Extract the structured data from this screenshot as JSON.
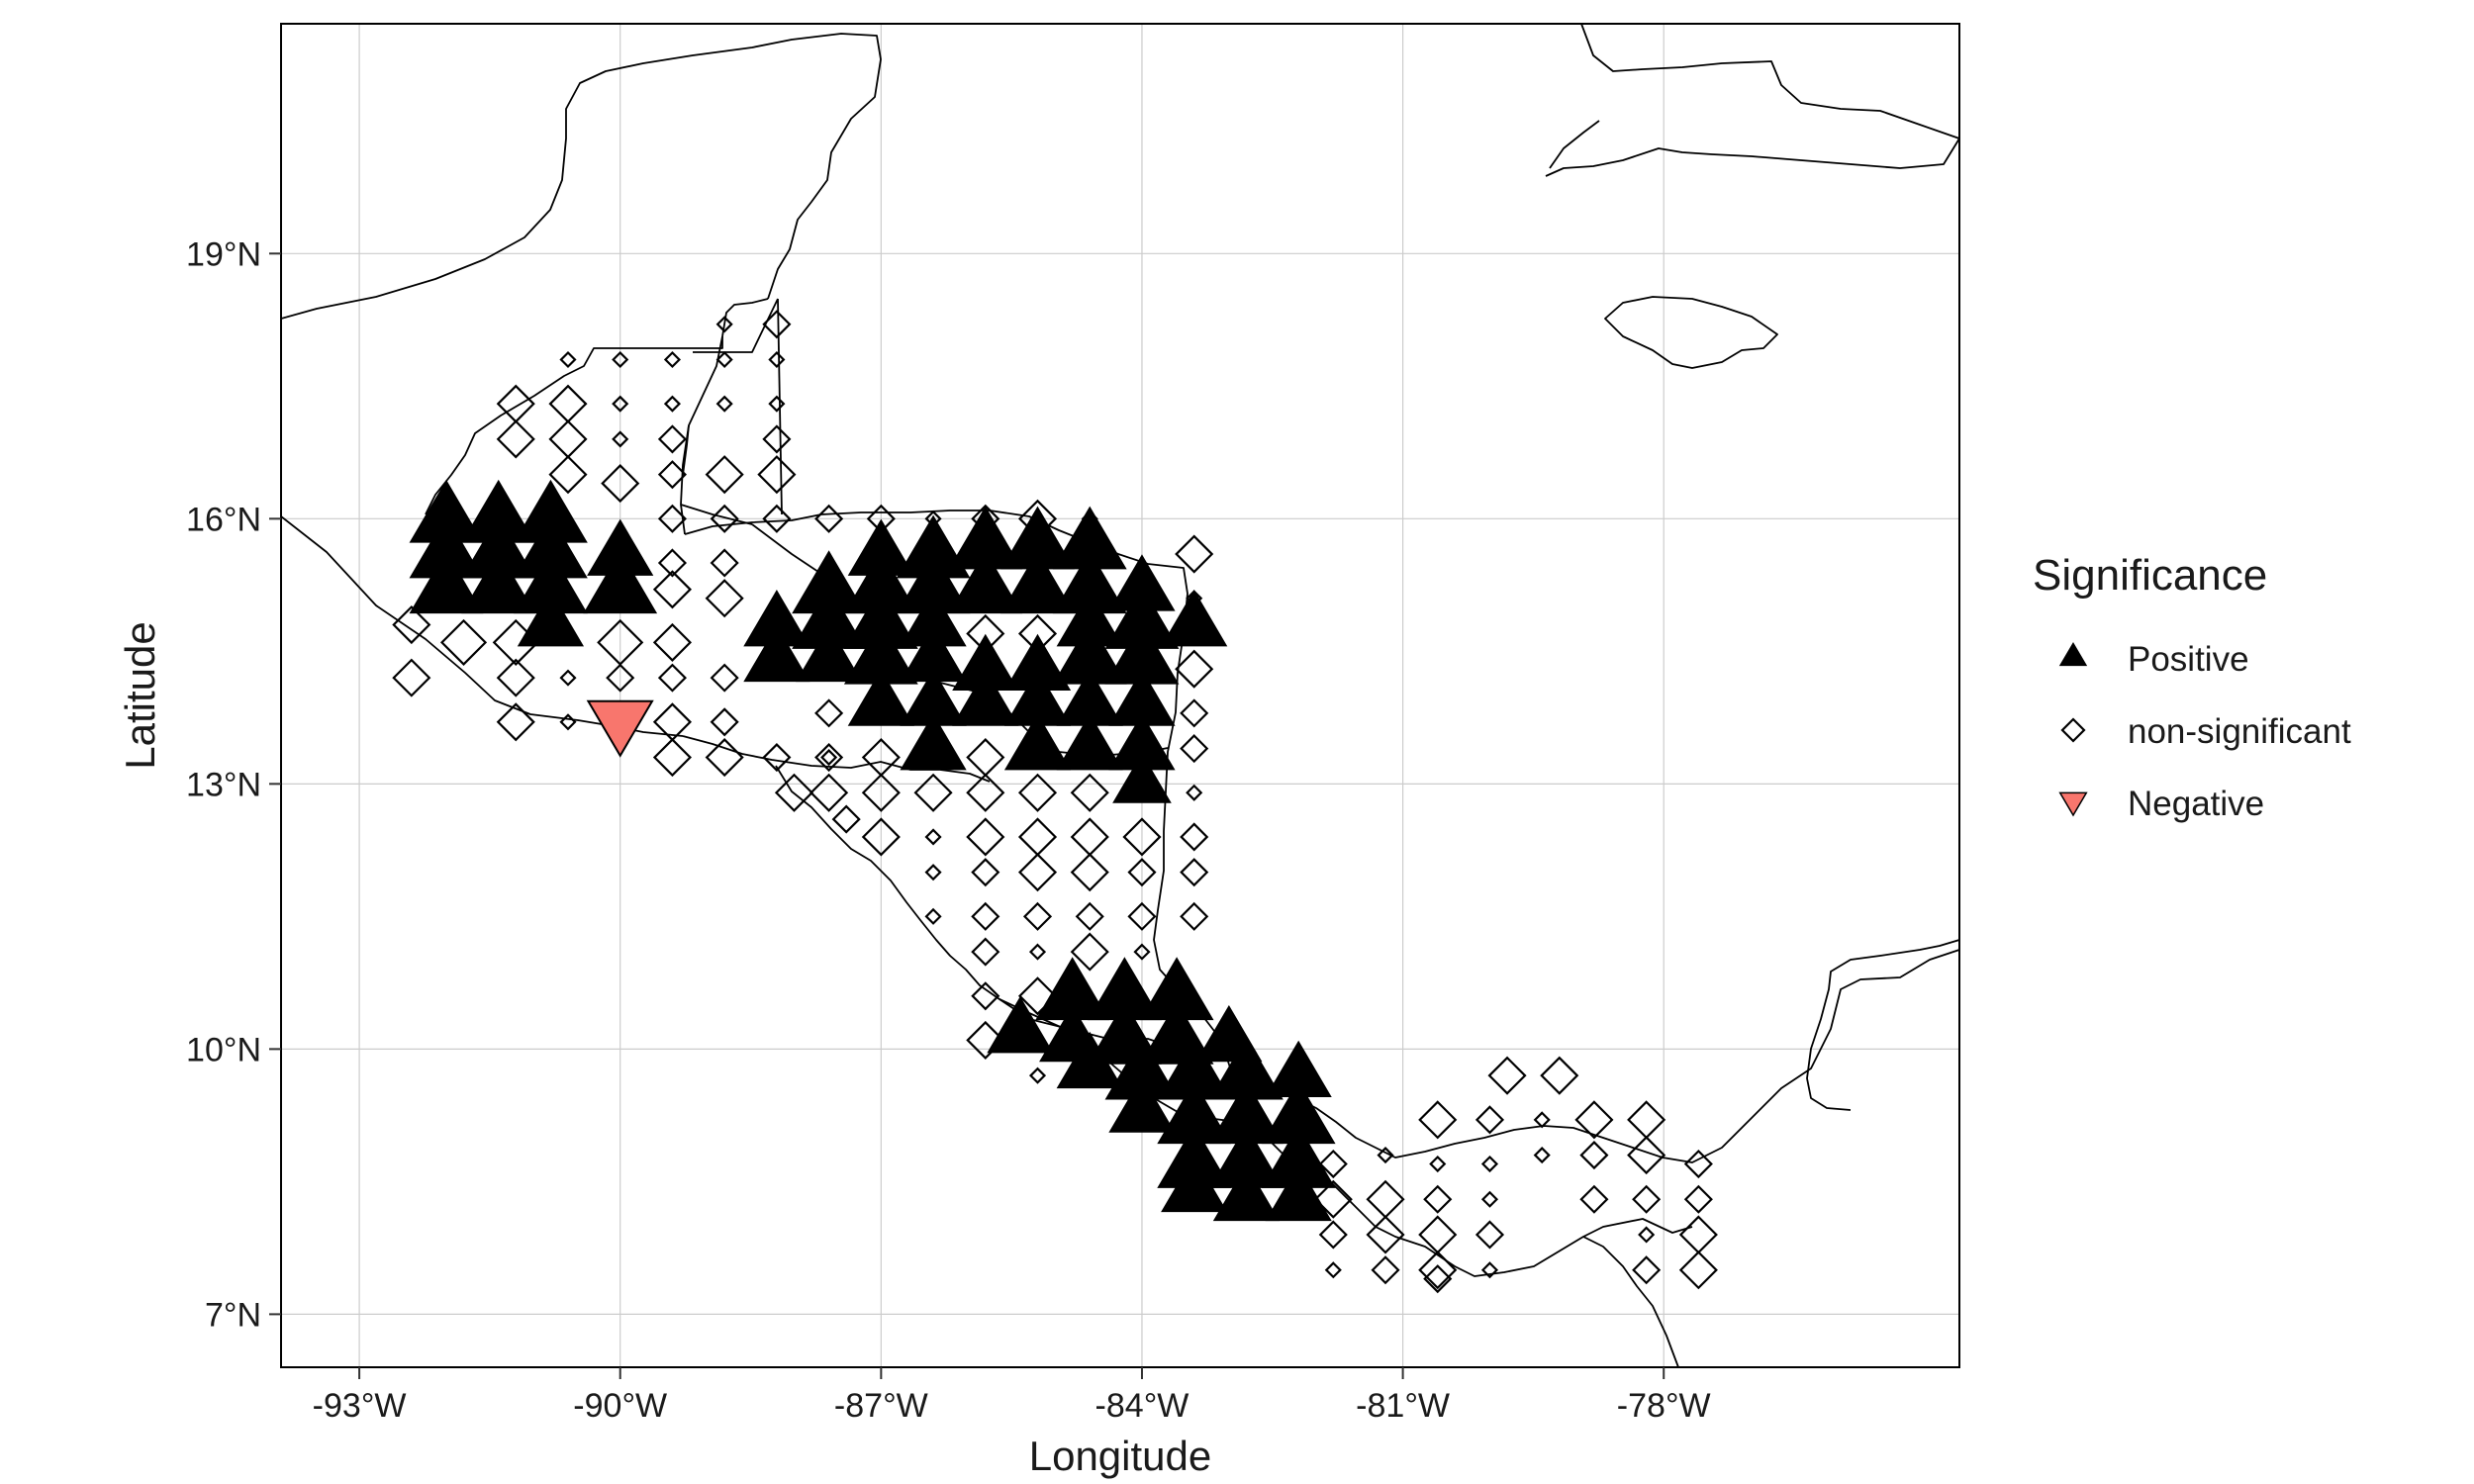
{
  "chart_data": {
    "type": "scatter",
    "xlabel": "Longitude",
    "ylabel": "Latitude",
    "xlim": [
      -93.9,
      -74.6
    ],
    "ylim": [
      6.4,
      21.6
    ],
    "x_ticks": [
      {
        "value": -93,
        "label": "-93°W"
      },
      {
        "value": -90,
        "label": "-90°W"
      },
      {
        "value": -87,
        "label": "-87°W"
      },
      {
        "value": -84,
        "label": "-84°W"
      },
      {
        "value": -81,
        "label": "-81°W"
      },
      {
        "value": -78,
        "label": "-78°W"
      }
    ],
    "y_ticks": [
      {
        "value": 7,
        "label": "7°N"
      },
      {
        "value": 10,
        "label": "10°N"
      },
      {
        "value": 13,
        "label": "13°N"
      },
      {
        "value": 16,
        "label": "16°N"
      },
      {
        "value": 19,
        "label": "19°N"
      }
    ],
    "grid": true,
    "legend": {
      "title": "Significance",
      "position": "right",
      "entries": [
        {
          "label": "Positive",
          "marker": "triangle-up",
          "color": "#000000"
        },
        {
          "label": "non-significant",
          "marker": "diamond-open",
          "color": "#000000"
        },
        {
          "label": "Negative",
          "marker": "triangle-down",
          "color": "#F8766D"
        }
      ]
    },
    "colors": {
      "positive": "#000000",
      "negative": "#F8766D",
      "nonsig": "#000000",
      "coast": "#000000",
      "grid": "#cccccc"
    },
    "series": [
      {
        "name": "Positive",
        "points": [
          [
            -92.0,
            16.0,
            5
          ],
          [
            -91.4,
            16.0,
            5
          ],
          [
            -90.8,
            16.0,
            5
          ],
          [
            -92.0,
            15.6,
            5
          ],
          [
            -91.4,
            15.6,
            5
          ],
          [
            -90.8,
            15.6,
            5
          ],
          [
            -90.0,
            15.6,
            4
          ],
          [
            -92.0,
            15.2,
            5
          ],
          [
            -91.4,
            15.2,
            5
          ],
          [
            -90.8,
            15.2,
            5
          ],
          [
            -90.0,
            15.2,
            5
          ],
          [
            -90.8,
            14.8,
            4
          ],
          [
            -87.0,
            15.6,
            4
          ],
          [
            -86.4,
            15.6,
            5
          ],
          [
            -85.8,
            15.7,
            5
          ],
          [
            -85.2,
            15.7,
            5
          ],
          [
            -84.6,
            15.7,
            5
          ],
          [
            -87.6,
            15.2,
            5
          ],
          [
            -87.0,
            15.2,
            5
          ],
          [
            -86.4,
            15.2,
            5
          ],
          [
            -85.8,
            15.2,
            5
          ],
          [
            -85.2,
            15.2,
            5
          ],
          [
            -84.6,
            15.2,
            5
          ],
          [
            -84.0,
            15.2,
            4
          ],
          [
            -88.2,
            14.8,
            4
          ],
          [
            -87.6,
            14.8,
            5
          ],
          [
            -87.0,
            14.8,
            5
          ],
          [
            -86.4,
            14.8,
            4
          ],
          [
            -84.6,
            14.8,
            4
          ],
          [
            -84.0,
            14.8,
            5
          ],
          [
            -83.4,
            14.8,
            4
          ],
          [
            -88.2,
            14.4,
            4
          ],
          [
            -87.6,
            14.4,
            4
          ],
          [
            -87.0,
            14.4,
            5
          ],
          [
            -86.4,
            14.4,
            4
          ],
          [
            -85.8,
            14.3,
            4
          ],
          [
            -85.2,
            14.3,
            4
          ],
          [
            -84.6,
            14.4,
            5
          ],
          [
            -84.0,
            14.4,
            5
          ],
          [
            -87.0,
            13.9,
            4
          ],
          [
            -86.4,
            13.9,
            4
          ],
          [
            -85.8,
            13.9,
            4
          ],
          [
            -85.2,
            13.9,
            4
          ],
          [
            -84.6,
            13.9,
            4
          ],
          [
            -84.0,
            13.9,
            4
          ],
          [
            -86.4,
            13.4,
            4
          ],
          [
            -85.2,
            13.4,
            4
          ],
          [
            -84.6,
            13.4,
            4
          ],
          [
            -84.0,
            13.4,
            4
          ],
          [
            -84.0,
            13.0,
            3
          ],
          [
            -85.4,
            10.2,
            4
          ],
          [
            -84.8,
            10.6,
            5
          ],
          [
            -84.2,
            10.6,
            5
          ],
          [
            -83.6,
            10.6,
            5
          ],
          [
            -84.8,
            10.1,
            4
          ],
          [
            -84.2,
            10.1,
            5
          ],
          [
            -83.6,
            10.1,
            5
          ],
          [
            -83.0,
            10.1,
            4
          ],
          [
            -84.6,
            9.8,
            4
          ],
          [
            -84.0,
            9.7,
            5
          ],
          [
            -83.4,
            9.7,
            5
          ],
          [
            -82.8,
            9.7,
            5
          ],
          [
            -82.2,
            9.7,
            4
          ],
          [
            -84.0,
            9.3,
            4
          ],
          [
            -83.4,
            9.2,
            5
          ],
          [
            -82.8,
            9.2,
            5
          ],
          [
            -82.2,
            9.2,
            5
          ],
          [
            -83.4,
            8.7,
            5
          ],
          [
            -82.8,
            8.7,
            5
          ],
          [
            -82.2,
            8.7,
            5
          ],
          [
            -83.4,
            8.4,
            4
          ],
          [
            -82.8,
            8.3,
            4
          ],
          [
            -82.2,
            8.3,
            4
          ]
        ]
      },
      {
        "name": "non-significant",
        "points": [
          [
            -91.2,
            17.3,
            3
          ],
          [
            -90.6,
            17.3,
            3
          ],
          [
            -91.2,
            16.9,
            3
          ],
          [
            -90.6,
            16.9,
            3
          ],
          [
            -90.6,
            16.5,
            3
          ],
          [
            -90.0,
            16.4,
            3
          ],
          [
            -90.6,
            17.8,
            1
          ],
          [
            -90.0,
            17.8,
            1
          ],
          [
            -89.4,
            17.8,
            1
          ],
          [
            -88.8,
            18.2,
            1
          ],
          [
            -88.2,
            18.2,
            2
          ],
          [
            -90.0,
            17.3,
            1
          ],
          [
            -89.4,
            17.3,
            1
          ],
          [
            -88.8,
            17.8,
            1
          ],
          [
            -88.2,
            17.8,
            1
          ],
          [
            -90.0,
            16.9,
            1
          ],
          [
            -89.4,
            16.9,
            2
          ],
          [
            -88.8,
            17.3,
            1
          ],
          [
            -88.2,
            17.3,
            1
          ],
          [
            -88.2,
            16.9,
            2
          ],
          [
            -89.4,
            16.5,
            2
          ],
          [
            -88.8,
            16.5,
            3
          ],
          [
            -88.2,
            16.5,
            3
          ],
          [
            -88.2,
            16.0,
            2
          ],
          [
            -88.8,
            16.0,
            2
          ],
          [
            -89.4,
            16.0,
            2
          ],
          [
            -89.4,
            15.5,
            2
          ],
          [
            -88.8,
            15.5,
            2
          ],
          [
            -88.8,
            15.1,
            3
          ],
          [
            -89.4,
            15.2,
            3
          ],
          [
            -92.4,
            14.8,
            3
          ],
          [
            -91.8,
            14.6,
            4
          ],
          [
            -91.2,
            14.6,
            4
          ],
          [
            -90.0,
            14.6,
            4
          ],
          [
            -89.4,
            14.6,
            3
          ],
          [
            -92.4,
            14.2,
            3
          ],
          [
            -91.2,
            14.2,
            3
          ],
          [
            -90.6,
            14.2,
            1
          ],
          [
            -90.0,
            14.2,
            2
          ],
          [
            -89.4,
            14.2,
            2
          ],
          [
            -88.8,
            14.2,
            2
          ],
          [
            -91.2,
            13.7,
            3
          ],
          [
            -90.6,
            13.7,
            1
          ],
          [
            -89.4,
            13.7,
            3
          ],
          [
            -88.8,
            13.7,
            2
          ],
          [
            -89.4,
            13.3,
            3
          ],
          [
            -88.8,
            13.3,
            3
          ],
          [
            -88.2,
            13.3,
            2
          ],
          [
            -87.6,
            13.3,
            1
          ],
          [
            -87.6,
            16.0,
            2
          ],
          [
            -87.0,
            16.0,
            2
          ],
          [
            -86.4,
            16.0,
            1
          ],
          [
            -85.8,
            16.0,
            2
          ],
          [
            -85.2,
            16.0,
            3
          ],
          [
            -84.6,
            16.0,
            1
          ],
          [
            -83.4,
            15.6,
            3
          ],
          [
            -83.4,
            15.1,
            1
          ],
          [
            -83.4,
            14.3,
            3
          ],
          [
            -83.4,
            13.8,
            2
          ],
          [
            -83.4,
            13.4,
            2
          ],
          [
            -83.4,
            12.9,
            1
          ],
          [
            -85.8,
            14.7,
            3
          ],
          [
            -85.2,
            14.7,
            3
          ],
          [
            -87.6,
            13.8,
            2
          ],
          [
            -87.6,
            13.3,
            2
          ],
          [
            -87.0,
            13.3,
            3
          ],
          [
            -85.8,
            13.3,
            3
          ],
          [
            -87.6,
            12.9,
            3
          ],
          [
            -87.0,
            12.9,
            3
          ],
          [
            -86.4,
            12.9,
            3
          ],
          [
            -85.8,
            12.9,
            3
          ],
          [
            -85.2,
            12.9,
            3
          ],
          [
            -84.6,
            12.9,
            3
          ],
          [
            -88.0,
            12.9,
            3
          ],
          [
            -87.4,
            12.6,
            2
          ],
          [
            -87.0,
            12.4,
            3
          ],
          [
            -86.4,
            12.4,
            1
          ],
          [
            -85.8,
            12.4,
            3
          ],
          [
            -85.2,
            12.4,
            3
          ],
          [
            -84.6,
            12.4,
            3
          ],
          [
            -84.0,
            12.4,
            3
          ],
          [
            -83.4,
            12.4,
            2
          ],
          [
            -86.4,
            12.0,
            1
          ],
          [
            -85.8,
            12.0,
            2
          ],
          [
            -85.2,
            12.0,
            3
          ],
          [
            -84.6,
            12.0,
            3
          ],
          [
            -84.0,
            12.0,
            2
          ],
          [
            -83.4,
            12.0,
            2
          ],
          [
            -86.4,
            11.5,
            1
          ],
          [
            -85.8,
            11.5,
            2
          ],
          [
            -85.2,
            11.5,
            2
          ],
          [
            -84.6,
            11.5,
            2
          ],
          [
            -84.0,
            11.5,
            2
          ],
          [
            -83.4,
            11.5,
            2
          ],
          [
            -85.8,
            11.1,
            2
          ],
          [
            -85.2,
            11.1,
            1
          ],
          [
            -84.6,
            11.1,
            3
          ],
          [
            -84.0,
            11.1,
            1
          ],
          [
            -85.8,
            10.6,
            2
          ],
          [
            -85.2,
            10.6,
            3
          ],
          [
            -85.8,
            10.1,
            3
          ],
          [
            -85.2,
            9.7,
            1
          ],
          [
            -81.8,
            8.7,
            2
          ],
          [
            -81.8,
            8.3,
            3
          ],
          [
            -81.2,
            8.3,
            3
          ],
          [
            -80.6,
            8.3,
            2
          ],
          [
            -80.6,
            8.7,
            1
          ],
          [
            -81.2,
            8.8,
            1
          ],
          [
            -81.8,
            7.9,
            2
          ],
          [
            -81.2,
            7.9,
            3
          ],
          [
            -80.6,
            7.9,
            3
          ],
          [
            -80.0,
            7.9,
            2
          ],
          [
            -81.8,
            7.5,
            1
          ],
          [
            -81.2,
            7.5,
            2
          ],
          [
            -80.6,
            7.5,
            3
          ],
          [
            -80.0,
            7.5,
            1
          ],
          [
            -80.6,
            9.2,
            3
          ],
          [
            -80.0,
            9.2,
            2
          ],
          [
            -80.0,
            8.7,
            1
          ],
          [
            -80.0,
            8.3,
            1
          ],
          [
            -79.4,
            8.8,
            1
          ],
          [
            -79.8,
            9.7,
            3
          ],
          [
            -79.4,
            9.2,
            1
          ],
          [
            -79.2,
            9.7,
            3
          ],
          [
            -78.8,
            9.2,
            3
          ],
          [
            -78.2,
            9.2,
            3
          ],
          [
            -78.8,
            8.8,
            2
          ],
          [
            -78.8,
            8.3,
            2
          ],
          [
            -78.2,
            8.8,
            3
          ],
          [
            -78.2,
            8.3,
            2
          ],
          [
            -77.6,
            8.7,
            2
          ],
          [
            -78.2,
            7.9,
            1
          ],
          [
            -77.6,
            8.3,
            2
          ],
          [
            -77.6,
            7.9,
            3
          ],
          [
            -78.2,
            7.5,
            2
          ],
          [
            -77.6,
            7.5,
            3
          ],
          [
            -80.6,
            7.4,
            2
          ]
        ]
      },
      {
        "name": "Negative",
        "points": [
          [
            -90.0,
            13.7,
            4
          ]
        ]
      }
    ]
  }
}
